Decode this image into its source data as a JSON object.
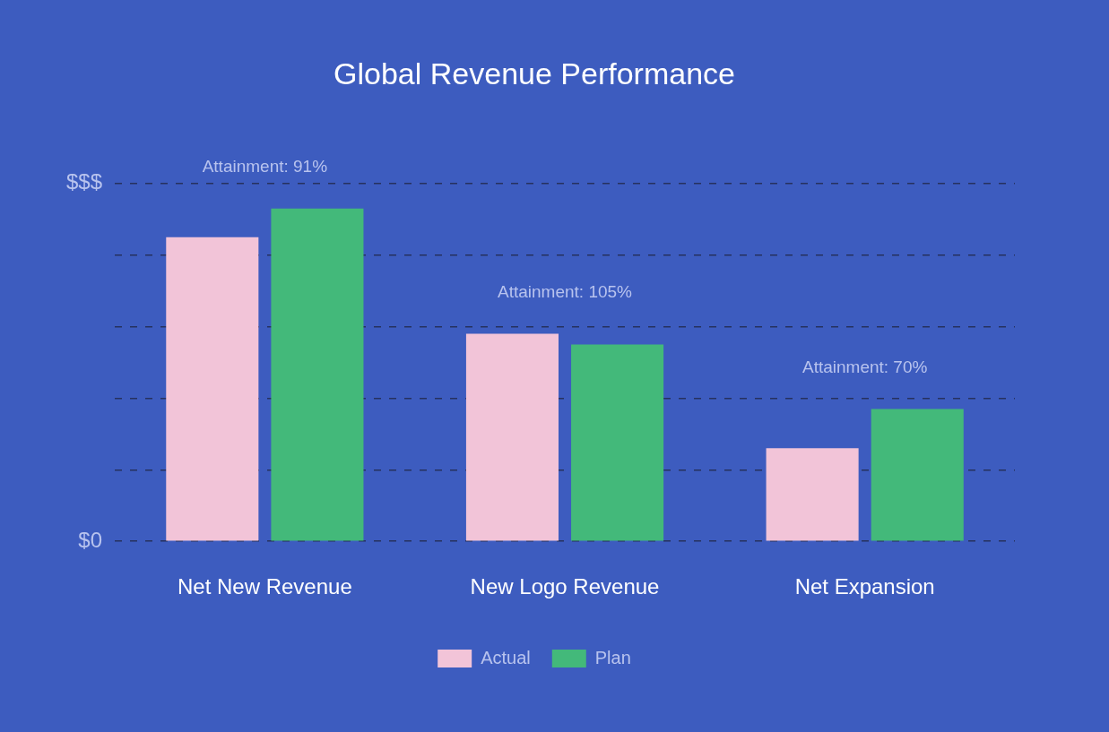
{
  "chart_data": {
    "type": "bar",
    "title": "Global Revenue Performance",
    "categories": [
      "Net New Revenue",
      "New Logo Revenue",
      "Net Expansion"
    ],
    "series": [
      {
        "name": "Actual",
        "color": "#f2c4d8",
        "values": [
          85,
          58,
          26
        ]
      },
      {
        "name": "Plan",
        "color": "#43b97a",
        "values": [
          93,
          55,
          37
        ]
      }
    ],
    "annotations": [
      "Attainment: 91%",
      "Attainment: 105%",
      "Attainment: 70%"
    ],
    "ylim": [
      0,
      100
    ],
    "yticks": [
      {
        "value": 0,
        "label": "$0"
      },
      {
        "value": 20,
        "label": null
      },
      {
        "value": 40,
        "label": null
      },
      {
        "value": 60,
        "label": null
      },
      {
        "value": 80,
        "label": null
      },
      {
        "value": 100,
        "label": "$$$"
      }
    ],
    "grid": true,
    "legend": "bottom"
  }
}
